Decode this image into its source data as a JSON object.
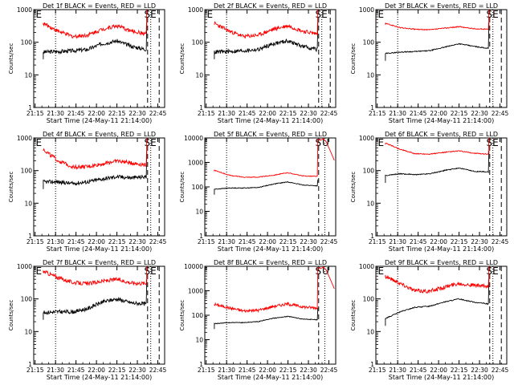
{
  "chart_data": [
    {
      "type": "line",
      "title": "Det 1f BLACK = Events, RED = LLD",
      "xlabel": "Start Time (24-May-11 21:14:00)",
      "ylabel": "Counts/sec",
      "yscale": "log",
      "ylim": [
        1,
        1000
      ],
      "yticks": [
        "1",
        "10",
        "100",
        "1000"
      ],
      "xticks": [
        "21:15",
        "21:30",
        "21:45",
        "22:00",
        "22:15",
        "22:30",
        "22:45"
      ],
      "markers": [
        "E",
        "S",
        "E"
      ],
      "series": [
        {
          "color": "#000000",
          "style": "noisy",
          "base": [
            50,
            52,
            55,
            60,
            90,
            110,
            75,
            60
          ],
          "end": 400
        },
        {
          "color": "#ff0000",
          "style": "noisy",
          "base": [
            380,
            220,
            150,
            165,
            250,
            320,
            220,
            180
          ],
          "end": 1000
        }
      ]
    },
    {
      "type": "line",
      "title": "Det 2f BLACK = Events, RED = LLD",
      "xlabel": "Start Time (24-May-11 21:14:00)",
      "ylabel": "Counts/sec",
      "yscale": "log",
      "ylim": [
        1,
        1000
      ],
      "yticks": [
        "1",
        "10",
        "100",
        "1000"
      ],
      "xticks": [
        "21:15",
        "21:30",
        "21:45",
        "22:00",
        "22:15",
        "22:30",
        "22:45"
      ],
      "markers": [
        "E",
        "S",
        "E"
      ],
      "series": [
        {
          "color": "#000000",
          "style": "noisy",
          "base": [
            50,
            52,
            55,
            60,
            90,
            110,
            75,
            60
          ],
          "end": 400
        },
        {
          "color": "#ff0000",
          "style": "noisy",
          "base": [
            380,
            220,
            150,
            165,
            250,
            320,
            220,
            180
          ],
          "end": 1000
        }
      ]
    },
    {
      "type": "line",
      "title": "Det 3f BLACK = Events, RED = LLD",
      "xlabel": "Start Time (24-May-11 21:14:00)",
      "ylabel": "Counts/sec",
      "yscale": "log",
      "ylim": [
        1,
        1000
      ],
      "yticks": [
        "1",
        "10",
        "100",
        "1000"
      ],
      "xticks": [
        "21:15",
        "21:30",
        "21:45",
        "22:00",
        "22:15",
        "22:30",
        "22:45"
      ],
      "markers": [
        "E",
        "S",
        "E"
      ],
      "series": [
        {
          "color": "#000000",
          "style": "smooth",
          "base": [
            45,
            50,
            52,
            55,
            70,
            90,
            75,
            65
          ],
          "end": 400
        },
        {
          "color": "#ff0000",
          "style": "smooth",
          "base": [
            380,
            280,
            250,
            240,
            270,
            300,
            260,
            250
          ],
          "end": 1000
        }
      ]
    },
    {
      "type": "line",
      "title": "Det 4f BLACK = Events, RED = LLD",
      "xlabel": "Start Time (24-May-11 21:14:00)",
      "ylabel": "Counts/sec",
      "yscale": "log",
      "ylim": [
        1,
        1000
      ],
      "yticks": [
        "1",
        "10",
        "100",
        "1000"
      ],
      "xticks": [
        "21:15",
        "21:30",
        "21:45",
        "22:00",
        "22:15",
        "22:30",
        "22:45"
      ],
      "markers": [
        "E",
        "S",
        "E"
      ],
      "series": [
        {
          "color": "#000000",
          "style": "noisy",
          "base": [
            45,
            45,
            40,
            45,
            55,
            65,
            60,
            65
          ],
          "end": 400
        },
        {
          "color": "#ff0000",
          "style": "noisy",
          "base": [
            450,
            200,
            130,
            130,
            160,
            200,
            170,
            150
          ],
          "end": 1000
        }
      ]
    },
    {
      "type": "line",
      "title": "Det 5f BLACK = Events, RED = LLD",
      "xlabel": "Start Time (24-May-11 21:14:00)",
      "ylabel": "Counts/sec",
      "yscale": "log",
      "ylim": [
        1,
        10000
      ],
      "yticks": [
        "1",
        "10",
        "100",
        "1000",
        "10000"
      ],
      "xticks": [
        "21:15",
        "21:30",
        "21:45",
        "22:00",
        "22:15",
        "22:30",
        "22:45"
      ],
      "markers": [
        "S",
        "U"
      ],
      "series": [
        {
          "color": "#000000",
          "style": "smooth",
          "base": [
            80,
            90,
            90,
            95,
            130,
            160,
            120,
            110
          ],
          "end": 200
        },
        {
          "color": "#ff0000",
          "style": "smooth",
          "base": [
            480,
            300,
            250,
            250,
            300,
            380,
            280,
            270
          ],
          "end": 9000
        }
      ]
    },
    {
      "type": "line",
      "title": "Det 6f BLACK = Events, RED = LLD",
      "xlabel": "Start Time (24-May-11 21:14:00)",
      "ylabel": "Counts/sec",
      "yscale": "log",
      "ylim": [
        1,
        1000
      ],
      "yticks": [
        "1",
        "10",
        "100",
        "1000"
      ],
      "xticks": [
        "21:15",
        "21:30",
        "21:45",
        "22:00",
        "22:15",
        "22:30",
        "22:45"
      ],
      "markers": [
        "E",
        "S",
        "E"
      ],
      "series": [
        {
          "color": "#000000",
          "style": "smooth",
          "base": [
            70,
            80,
            75,
            80,
            100,
            120,
            95,
            90
          ],
          "end": 400
        },
        {
          "color": "#ff0000",
          "style": "smooth",
          "base": [
            700,
            450,
            330,
            320,
            360,
            400,
            340,
            320
          ],
          "end": 1000
        }
      ]
    },
    {
      "type": "line",
      "title": "Det 7f BLACK = Events, RED = LLD",
      "xlabel": "Start Time (24-May-11 21:14:00)",
      "ylabel": "Counts/sec",
      "yscale": "log",
      "ylim": [
        1,
        1000
      ],
      "yticks": [
        "1",
        "10",
        "100",
        "1000"
      ],
      "xticks": [
        "21:15",
        "21:30",
        "21:45",
        "22:00",
        "22:15",
        "22:30",
        "22:45"
      ],
      "markers": [
        "E",
        "S",
        "E"
      ],
      "series": [
        {
          "color": "#000000",
          "style": "noisy",
          "base": [
            38,
            40,
            40,
            50,
            80,
            100,
            75,
            70
          ],
          "end": 400
        },
        {
          "color": "#ff0000",
          "style": "noisy",
          "base": [
            700,
            450,
            320,
            290,
            350,
            400,
            310,
            300
          ],
          "end": 1000
        }
      ]
    },
    {
      "type": "line",
      "title": "Det 8f BLACK = Events, RED = LLD",
      "xlabel": "Start Time (24-May-11 21:14:00)",
      "ylabel": "Counts/sec",
      "yscale": "log",
      "ylim": [
        1,
        10000
      ],
      "yticks": [
        "1",
        "10",
        "100",
        "1000",
        "10000"
      ],
      "xticks": [
        "21:15",
        "21:30",
        "21:45",
        "22:00",
        "22:15",
        "22:30",
        "22:45"
      ],
      "markers": [
        "S",
        "U"
      ],
      "series": [
        {
          "color": "#000000",
          "style": "smooth",
          "base": [
            45,
            50,
            50,
            55,
            75,
            90,
            70,
            65
          ],
          "end": 200
        },
        {
          "color": "#ff0000",
          "style": "noisy",
          "base": [
            280,
            200,
            150,
            160,
            230,
            290,
            220,
            200
          ],
          "end": 9000
        }
      ]
    },
    {
      "type": "line",
      "title": "Det 9f BLACK = Events, RED = LLD",
      "xlabel": "Start Time (24-May-11 21:14:00)",
      "ylabel": "Counts/sec",
      "yscale": "log",
      "ylim": [
        1,
        1000
      ],
      "yticks": [
        "1",
        "10",
        "100",
        "1000"
      ],
      "xticks": [
        "21:15",
        "21:30",
        "21:45",
        "22:00",
        "22:15",
        "22:30",
        "22:45"
      ],
      "markers": [
        "E",
        "S",
        "E"
      ],
      "series": [
        {
          "color": "#000000",
          "style": "smooth",
          "base": [
            25,
            40,
            55,
            60,
            80,
            100,
            80,
            70
          ],
          "end": 400
        },
        {
          "color": "#ff0000",
          "style": "noisy",
          "base": [
            500,
            300,
            180,
            170,
            230,
            300,
            260,
            240
          ],
          "end": 1000
        }
      ]
    }
  ]
}
